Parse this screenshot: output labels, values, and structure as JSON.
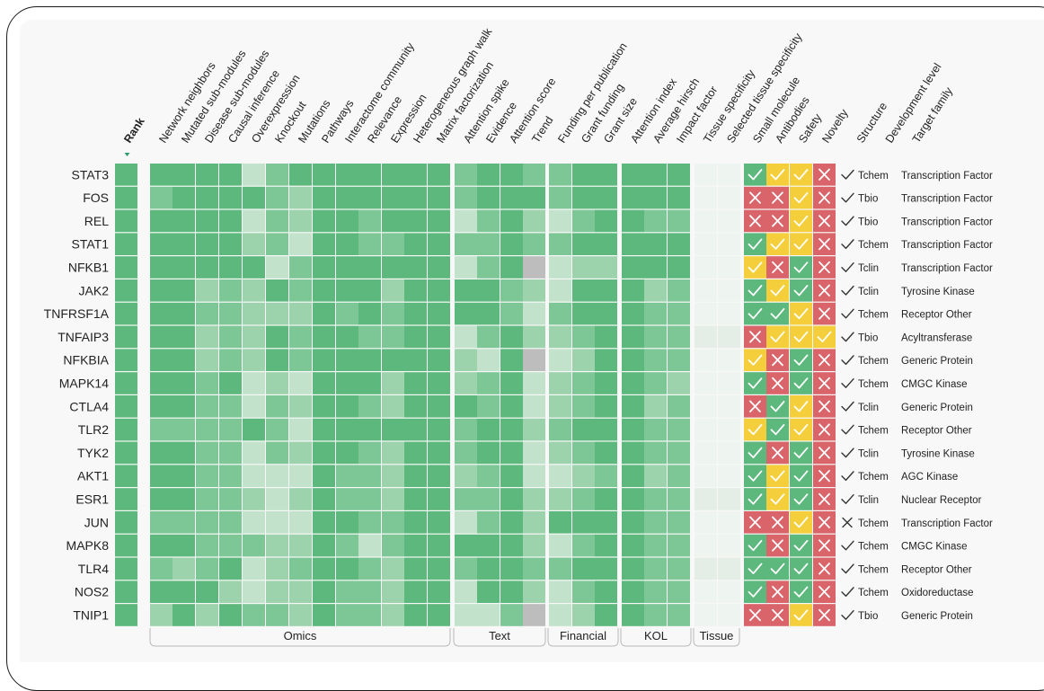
{
  "columns": [
    "Rank",
    "Network neighbors",
    "Mutated sub-modules",
    "Disease sub-modules",
    "Causal inference",
    "Overexpression",
    "Knockout",
    "Mutations",
    "Pathways",
    "Interactome community",
    "Relevance",
    "Expression",
    "Heterogeneous graph walk",
    "Matrix factorization",
    "Attention spike",
    "Evidence",
    "Attention score",
    "Trend",
    "Funding per publication",
    "Grant funding",
    "Grant size",
    "Attention index",
    "Average hirsch",
    "Impact factor",
    "Tissue specificity",
    "Selected tissue specificity",
    "Small molecule",
    "Antibodies",
    "Safety",
    "Novelty",
    "Structure",
    "Development level",
    "Target family"
  ],
  "groups": [
    {
      "label": "Omics"
    },
    {
      "label": "Text"
    },
    {
      "label": "Financial"
    },
    {
      "label": "KOL"
    },
    {
      "label": "Tissue"
    }
  ],
  "chart_data": {
    "type": "heatmap",
    "rows": [
      "STAT3",
      "FOS",
      "REL",
      "STAT1",
      "NFKB1",
      "JAK2",
      "TNFRSF1A",
      "TNFAIP3",
      "NFKBIA",
      "MAPK14",
      "CTLA4",
      "TLR2",
      "TYK2",
      "AKT1",
      "ESR1",
      "JUN",
      "MAPK8",
      "TLR4",
      "NOS2",
      "TNIP1"
    ],
    "score_columns": [
      "Rank",
      "Network neighbors",
      "Mutated sub-modules",
      "Disease sub-modules",
      "Causal inference",
      "Overexpression",
      "Knockout",
      "Mutations",
      "Pathways",
      "Interactome community",
      "Relevance",
      "Expression",
      "Heterogeneous graph walk",
      "Matrix factorization",
      "Attention spike",
      "Evidence",
      "Attention score",
      "Trend",
      "Funding per publication",
      "Grant funding",
      "Grant size",
      "Attention index",
      "Average hirsch",
      "Impact factor",
      "Tissue specificity",
      "Selected tissue specificity"
    ],
    "score_scale": "0 = lightest green, 4 = darkest green, null = grey (no data)",
    "scores": [
      [
        4,
        4,
        4,
        4,
        4,
        1,
        3,
        4,
        4,
        4,
        4,
        4,
        4,
        4,
        3,
        4,
        4,
        3,
        3,
        4,
        4,
        4,
        4,
        4,
        0,
        0
      ],
      [
        4,
        3,
        4,
        4,
        4,
        4,
        3,
        2,
        4,
        4,
        4,
        4,
        4,
        4,
        3,
        4,
        4,
        4,
        3,
        4,
        4,
        4,
        4,
        4,
        0,
        0
      ],
      [
        4,
        4,
        4,
        4,
        4,
        1,
        3,
        2,
        4,
        4,
        3,
        4,
        4,
        4,
        1,
        3,
        4,
        2,
        1,
        3,
        4,
        4,
        3,
        3,
        0,
        0
      ],
      [
        4,
        4,
        4,
        4,
        4,
        2,
        3,
        1,
        4,
        4,
        3,
        3,
        4,
        4,
        3,
        3,
        4,
        3,
        3,
        4,
        4,
        4,
        4,
        4,
        0,
        0
      ],
      [
        4,
        4,
        4,
        4,
        4,
        4,
        1,
        3,
        4,
        4,
        4,
        4,
        4,
        4,
        1,
        3,
        4,
        null,
        1,
        2,
        2,
        4,
        4,
        4,
        0,
        0
      ],
      [
        4,
        4,
        4,
        2,
        3,
        2,
        4,
        3,
        4,
        4,
        4,
        2,
        4,
        4,
        4,
        4,
        3,
        2,
        1,
        4,
        4,
        4,
        2,
        3,
        0,
        0
      ],
      [
        4,
        4,
        4,
        3,
        3,
        2,
        2,
        2,
        4,
        3,
        4,
        3,
        4,
        4,
        4,
        4,
        3,
        1,
        3,
        4,
        4,
        4,
        3,
        3,
        0,
        0
      ],
      [
        4,
        4,
        4,
        2,
        3,
        2,
        4,
        3,
        4,
        4,
        3,
        3,
        4,
        4,
        1,
        3,
        4,
        2,
        2,
        3,
        4,
        4,
        3,
        3,
        1,
        1
      ],
      [
        4,
        4,
        4,
        2,
        3,
        2,
        4,
        3,
        4,
        4,
        4,
        4,
        4,
        4,
        2,
        1,
        4,
        null,
        1,
        2,
        4,
        4,
        3,
        3,
        0,
        0
      ],
      [
        4,
        4,
        4,
        3,
        4,
        1,
        2,
        1,
        4,
        4,
        4,
        2,
        4,
        4,
        2,
        3,
        4,
        1,
        2,
        3,
        4,
        4,
        3,
        2,
        0,
        0
      ],
      [
        4,
        4,
        4,
        3,
        3,
        1,
        3,
        2,
        4,
        4,
        3,
        2,
        4,
        4,
        4,
        3,
        4,
        1,
        2,
        3,
        4,
        4,
        2,
        3,
        0,
        0
      ],
      [
        4,
        3,
        3,
        3,
        3,
        4,
        3,
        1,
        4,
        4,
        4,
        4,
        4,
        4,
        3,
        4,
        4,
        2,
        3,
        4,
        4,
        4,
        3,
        3,
        0,
        0
      ],
      [
        4,
        4,
        4,
        3,
        3,
        1,
        3,
        2,
        4,
        4,
        3,
        2,
        4,
        4,
        3,
        4,
        4,
        1,
        2,
        3,
        4,
        4,
        3,
        3,
        0,
        0
      ],
      [
        4,
        4,
        4,
        3,
        3,
        1,
        1,
        1,
        4,
        3,
        3,
        2,
        4,
        4,
        2,
        3,
        4,
        1,
        1,
        2,
        3,
        4,
        2,
        3,
        0,
        0
      ],
      [
        4,
        4,
        4,
        3,
        3,
        2,
        1,
        2,
        4,
        3,
        3,
        2,
        4,
        4,
        3,
        3,
        4,
        2,
        2,
        3,
        4,
        4,
        3,
        3,
        1,
        1
      ],
      [
        4,
        3,
        3,
        3,
        3,
        1,
        1,
        1,
        4,
        4,
        3,
        3,
        4,
        4,
        1,
        3,
        4,
        2,
        4,
        4,
        4,
        4,
        3,
        3,
        0,
        0
      ],
      [
        4,
        4,
        4,
        3,
        3,
        3,
        2,
        2,
        4,
        3,
        1,
        3,
        4,
        4,
        4,
        4,
        4,
        2,
        1,
        3,
        4,
        4,
        3,
        3,
        0,
        0
      ],
      [
        4,
        3,
        2,
        3,
        4,
        1,
        2,
        3,
        4,
        4,
        3,
        2,
        4,
        4,
        3,
        4,
        4,
        3,
        3,
        4,
        4,
        4,
        3,
        3,
        1,
        1
      ],
      [
        4,
        4,
        4,
        4,
        2,
        1,
        2,
        2,
        4,
        3,
        3,
        2,
        4,
        4,
        1,
        4,
        4,
        2,
        1,
        3,
        4,
        4,
        3,
        3,
        0,
        0
      ],
      [
        4,
        2,
        4,
        2,
        4,
        3,
        3,
        2,
        4,
        3,
        3,
        2,
        4,
        4,
        1,
        1,
        3,
        null,
        1,
        2,
        4,
        4,
        3,
        3,
        0,
        0
      ]
    ],
    "flag_columns": [
      "Small molecule",
      "Antibodies",
      "Safety",
      "Novelty"
    ],
    "flags": [
      [
        "yes",
        "med",
        "med",
        "no"
      ],
      [
        "no",
        "no",
        "med",
        "no"
      ],
      [
        "no",
        "no",
        "med",
        "no"
      ],
      [
        "yes",
        "med",
        "med",
        "no"
      ],
      [
        "med",
        "no",
        "yes",
        "no"
      ],
      [
        "yes",
        "med",
        "yes",
        "no"
      ],
      [
        "yes",
        "yes",
        "med",
        "no"
      ],
      [
        "no",
        "med",
        "med",
        "med"
      ],
      [
        "med",
        "no",
        "yes",
        "no"
      ],
      [
        "yes",
        "no",
        "yes",
        "no"
      ],
      [
        "no",
        "yes",
        "med",
        "no"
      ],
      [
        "med",
        "yes",
        "med",
        "no"
      ],
      [
        "yes",
        "no",
        "yes",
        "no"
      ],
      [
        "yes",
        "med",
        "yes",
        "no"
      ],
      [
        "yes",
        "med",
        "yes",
        "no"
      ],
      [
        "no",
        "no",
        "med",
        "no"
      ],
      [
        "yes",
        "no",
        "yes",
        "no"
      ],
      [
        "yes",
        "yes",
        "yes",
        "no"
      ],
      [
        "yes",
        "no",
        "yes",
        "no"
      ],
      [
        "no",
        "no",
        "med",
        "no"
      ]
    ],
    "structure": [
      "yes",
      "yes",
      "yes",
      "yes",
      "yes",
      "yes",
      "yes",
      "yes",
      "yes",
      "yes",
      "yes",
      "yes",
      "yes",
      "yes",
      "yes",
      "no",
      "yes",
      "yes",
      "yes",
      "yes"
    ],
    "development_level": [
      "Tchem",
      "Tbio",
      "Tbio",
      "Tchem",
      "Tclin",
      "Tclin",
      "Tchem",
      "Tbio",
      "Tchem",
      "Tchem",
      "Tclin",
      "Tchem",
      "Tclin",
      "Tchem",
      "Tclin",
      "Tchem",
      "Tchem",
      "Tchem",
      "Tchem",
      "Tbio"
    ],
    "target_family": [
      "Transcription Factor",
      "Transcription Factor",
      "Transcription Factor",
      "Transcription Factor",
      "Transcription Factor",
      "Tyrosine Kinase",
      "Receptor Other",
      "Acyltransferase",
      "Generic Protein",
      "CMGC Kinase",
      "Generic Protein",
      "Receptor Other",
      "Tyrosine Kinase",
      "AGC Kinase",
      "Nuclear Receptor",
      "Transcription Factor",
      "CMGC Kinase",
      "Receptor Other",
      "Oxidoreductase",
      "Generic Protein"
    ]
  },
  "colors": {
    "green_scale": [
      "#e7f3ea",
      "#c2e2cb",
      "#9cd3ad",
      "#7dc797",
      "#5cb87c"
    ],
    "missing": "#bdbdbd",
    "tissue_light": "#eef4ef",
    "tissue_lighter": "#e4eee6",
    "flag_yes": "#5cb87c",
    "flag_med": "#f4cf3b",
    "flag_no": "#d9646a",
    "sort_marker": "#2f9e6e"
  }
}
